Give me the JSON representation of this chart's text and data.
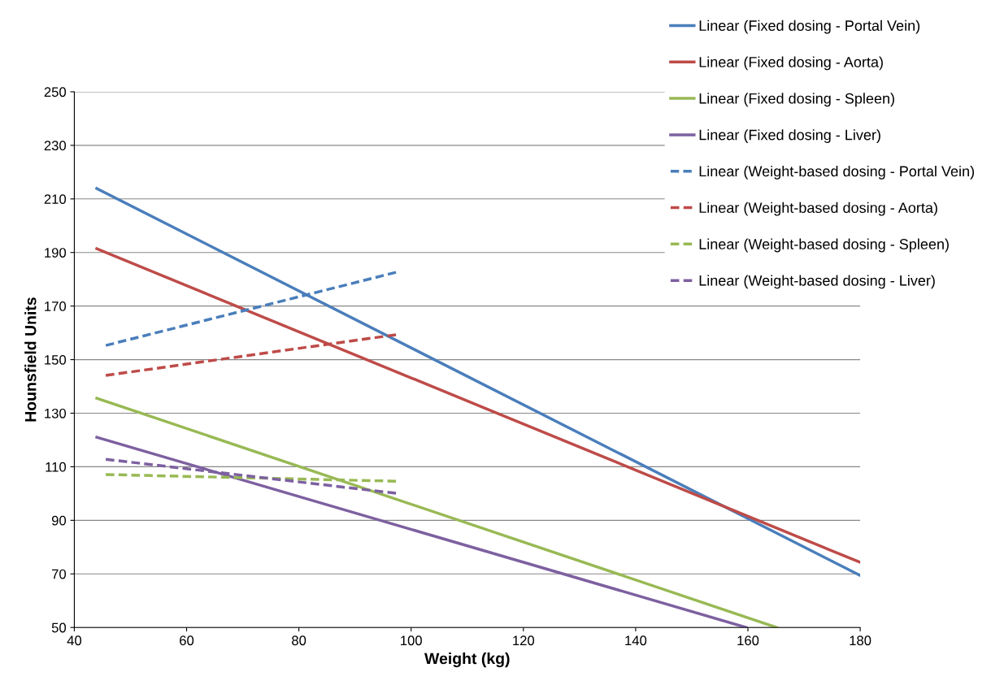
{
  "chart_data": {
    "type": "line",
    "xlabel": "Weight (kg)",
    "ylabel": "Hounsfield Units",
    "xlim": [
      40,
      180
    ],
    "xticks": [
      40,
      60,
      80,
      100,
      120,
      140,
      160,
      180
    ],
    "ylim": [
      50,
      250
    ],
    "yticks": [
      50,
      70,
      90,
      110,
      130,
      150,
      170,
      190,
      210,
      230,
      250
    ],
    "grid": "y",
    "legend": "top right",
    "marker": "none",
    "series": [
      {
        "name": "Linear (Fixed dosing - Portal Vein)",
        "color": "#4a7ebb",
        "line_style": "solid",
        "x": [
          44,
          180
        ],
        "values": [
          213.9,
          69.4
        ]
      },
      {
        "name": "Linear (Fixed dosing - Aorta)",
        "color": "#be4b48",
        "line_style": "solid",
        "x": [
          44,
          180
        ],
        "values": [
          191.4,
          74.3
        ]
      },
      {
        "name": "Linear (Fixed dosing - Spleen)",
        "color": "#98b954",
        "line_style": "solid",
        "x": [
          44,
          165.1
        ],
        "values": [
          135.6,
          50
        ]
      },
      {
        "name": "Linear (Fixed dosing - Liver)",
        "color": "#7d60a0",
        "line_style": "solid",
        "x": [
          44,
          159.7
        ],
        "values": [
          121,
          50
        ]
      },
      {
        "name": "Linear (Weight-based dosing - Portal Vein)",
        "color": "#4a7ebb",
        "line_style": "dashed",
        "x": [
          45.6,
          97.3
        ],
        "values": [
          155.3,
          182.6
        ]
      },
      {
        "name": "Linear (Weight-based dosing - Aorta)",
        "color": "#be4b48",
        "line_style": "dashed",
        "x": [
          45.6,
          97.3
        ],
        "values": [
          144.1,
          159.3
        ]
      },
      {
        "name": "Linear (Weight-based dosing - Spleen)",
        "color": "#98b954",
        "line_style": "dashed",
        "x": [
          45.6,
          97.3
        ],
        "values": [
          107.1,
          104.6
        ]
      },
      {
        "name": "Linear (Weight-based dosing - Liver)",
        "color": "#7d60a0",
        "line_style": "dashed",
        "x": [
          45.6,
          97.3
        ],
        "values": [
          112.8,
          100.1
        ]
      }
    ]
  }
}
